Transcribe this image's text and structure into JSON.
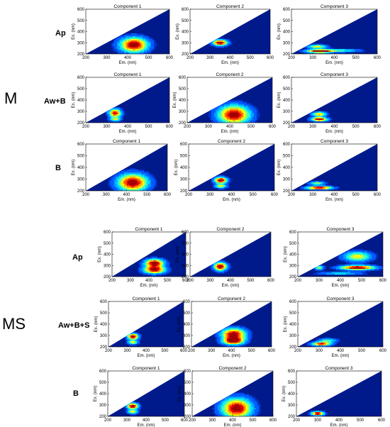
{
  "groups": [
    {
      "label": "M",
      "rows": [
        {
          "label": "Ap"
        },
        {
          "label": "Aw+B"
        },
        {
          "label": "B"
        }
      ]
    },
    {
      "label": "MS",
      "rows": [
        {
          "label": "Ap"
        },
        {
          "label": "Aw+B+S"
        },
        {
          "label": "B"
        }
      ]
    }
  ],
  "panel_titles": [
    "Component 1",
    "Component 2",
    "Component 3"
  ],
  "axes": {
    "xlabel": "Em. (nm)",
    "ylabel": "Ex. (nm)",
    "xlim": [
      200,
      600
    ],
    "ylim": [
      200,
      600
    ],
    "xticks": [
      "200",
      "300",
      "400",
      "500",
      "600"
    ],
    "yticks": [
      "200",
      "300",
      "400",
      "500",
      "600"
    ]
  },
  "colors": {
    "background": "#001a8c",
    "contour_levels": [
      "#0033cc",
      "#005cff",
      "#00a0ff",
      "#00e0ff",
      "#40ffbf",
      "#a0ff60",
      "#ffff00",
      "#ffb000",
      "#ff5000",
      "#e00000",
      "#a00000"
    ]
  },
  "chart_data": {
    "type": "heatmap",
    "description_of_grid": "2 groups x 3 samples x 3 PARAFAC components; each panel is an EEM contour plot",
    "panels": [
      [
        [
          {
            "peaks": [
              {
                "em": 430,
                "ex": 280,
                "w": 45,
                "h": 45,
                "amp": 1.0
              }
            ]
          },
          {
            "peaks": [
              {
                "em": 350,
                "ex": 300,
                "w": 25,
                "h": 18,
                "amp": 1.0
              }
            ]
          },
          {
            "peaks": [
              {
                "em": 330,
                "ex": 225,
                "w": 40,
                "h": 10,
                "amp": 1.0
              },
              {
                "em": 320,
                "ex": 265,
                "w": 30,
                "h": 12,
                "amp": 0.6
              },
              {
                "em": 430,
                "ex": 230,
                "w": 60,
                "h": 10,
                "amp": 0.4
              }
            ]
          }
        ],
        [
          {
            "peaks": [
              {
                "em": 340,
                "ex": 285,
                "w": 20,
                "h": 25,
                "amp": 0.9
              },
              {
                "em": 340,
                "ex": 230,
                "w": 18,
                "h": 12,
                "amp": 0.5
              }
            ]
          },
          {
            "peaks": [
              {
                "em": 420,
                "ex": 270,
                "w": 50,
                "h": 55,
                "amp": 1.0
              }
            ]
          },
          {
            "peaks": [
              {
                "em": 330,
                "ex": 230,
                "w": 25,
                "h": 12,
                "amp": 1.0
              },
              {
                "em": 330,
                "ex": 275,
                "w": 22,
                "h": 14,
                "amp": 0.7
              }
            ]
          }
        ],
        [
          {
            "peaks": [
              {
                "em": 430,
                "ex": 270,
                "w": 50,
                "h": 50,
                "amp": 1.0
              }
            ]
          },
          {
            "peaks": [
              {
                "em": 350,
                "ex": 290,
                "w": 20,
                "h": 18,
                "amp": 1.0
              },
              {
                "em": 350,
                "ex": 240,
                "w": 18,
                "h": 12,
                "amp": 0.6
              }
            ]
          },
          {
            "peaks": [
              {
                "em": 330,
                "ex": 225,
                "w": 40,
                "h": 10,
                "amp": 1.0
              },
              {
                "em": 320,
                "ex": 265,
                "w": 25,
                "h": 10,
                "amp": 0.5
              }
            ]
          }
        ]
      ],
      [
        [
          {
            "peaks": [
              {
                "em": 430,
                "ex": 320,
                "w": 35,
                "h": 25,
                "amp": 1.0
              },
              {
                "em": 430,
                "ex": 260,
                "w": 40,
                "h": 22,
                "amp": 0.95
              }
            ]
          },
          {
            "peaks": [
              {
                "em": 350,
                "ex": 290,
                "w": 22,
                "h": 25,
                "amp": 1.0
              }
            ]
          },
          {
            "peaks": [
              {
                "em": 480,
                "ex": 280,
                "w": 55,
                "h": 14,
                "amp": 1.0
              },
              {
                "em": 480,
                "ex": 380,
                "w": 45,
                "h": 30,
                "amp": 0.6
              },
              {
                "em": 300,
                "ex": 280,
                "w": 15,
                "h": 14,
                "amp": 0.5
              },
              {
                "em": 400,
                "ex": 230,
                "w": 70,
                "h": 8,
                "amp": 0.35
              }
            ]
          }
        ],
        [
          {
            "peaks": [
              {
                "em": 330,
                "ex": 290,
                "w": 20,
                "h": 18,
                "amp": 1.0
              },
              {
                "em": 330,
                "ex": 240,
                "w": 18,
                "h": 12,
                "amp": 0.6
              }
            ]
          },
          {
            "peaks": [
              {
                "em": 410,
                "ex": 310,
                "w": 40,
                "h": 35,
                "amp": 1.0
              },
              {
                "em": 410,
                "ex": 250,
                "w": 35,
                "h": 22,
                "amp": 0.9
              }
            ]
          },
          {
            "peaks": [
              {
                "em": 310,
                "ex": 225,
                "w": 30,
                "h": 12,
                "amp": 0.9
              },
              {
                "em": 340,
                "ex": 255,
                "w": 30,
                "h": 14,
                "amp": 0.4
              }
            ]
          }
        ],
        [
          {
            "peaks": [
              {
                "em": 330,
                "ex": 290,
                "w": 20,
                "h": 18,
                "amp": 1.0
              },
              {
                "em": 330,
                "ex": 240,
                "w": 18,
                "h": 12,
                "amp": 0.6
              }
            ]
          },
          {
            "peaks": [
              {
                "em": 420,
                "ex": 270,
                "w": 50,
                "h": 60,
                "amp": 1.0
              }
            ]
          },
          {
            "peaks": [
              {
                "em": 300,
                "ex": 225,
                "w": 20,
                "h": 12,
                "amp": 1.0
              }
            ]
          }
        ]
      ]
    ]
  }
}
